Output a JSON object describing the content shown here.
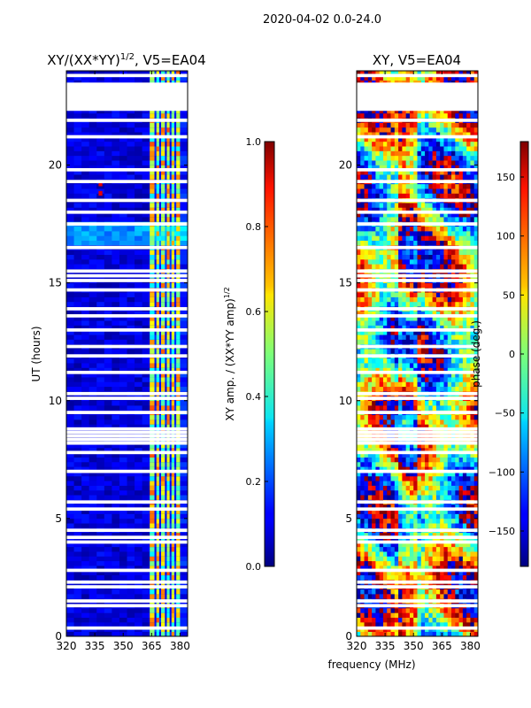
{
  "figure": {
    "suptitle": "2020-04-02 0.0-24.0",
    "xlabel": "frequency (MHz)"
  },
  "chart_data": [
    {
      "type": "heatmap",
      "title_main": "XY/(XX*YY)",
      "title_sup": "1/2",
      "title_rest": ", V5=EA04",
      "ylabel": "UT (hours)",
      "xlim": [
        320,
        384
      ],
      "ylim": [
        0,
        24
      ],
      "xticks": [
        320,
        335,
        350,
        365,
        380
      ],
      "yticks": [
        0,
        5,
        10,
        15,
        20
      ],
      "colorbar": {
        "label": "XY amp. / (XX*YY amp)",
        "label_sup": "1/2",
        "range": [
          0.0,
          1.0
        ],
        "ticks": [
          "0.0",
          "0.2",
          "0.4",
          "0.6",
          "0.8",
          "1.0"
        ],
        "tick_values": [
          0.0,
          0.2,
          0.4,
          0.6,
          0.8,
          1.0
        ],
        "colormap": "jet"
      },
      "band_freq_ranges_mhz": [
        [
          364,
          366.5
        ],
        [
          367.5,
          369
        ],
        [
          370,
          372
        ],
        [
          373,
          374.5
        ],
        [
          375.5,
          377
        ],
        [
          378,
          380
        ]
      ],
      "hot_spot": {
        "freq": 338,
        "ut_hours": [
          18.8,
          19.2
        ],
        "value": 0.9
      },
      "flagged_ut_hours": [
        0.35,
        1.3,
        1.5,
        2.1,
        2.3,
        2.8,
        4.0,
        4.2,
        4.5,
        5.4,
        5.7,
        7.0,
        7.8,
        8.2,
        8.35,
        8.5,
        8.65,
        8.8,
        9.5,
        10.1,
        10.3,
        11.2,
        11.9,
        12.3,
        13.0,
        13.6,
        13.9,
        14.7,
        15.1,
        15.3,
        15.5,
        16.5,
        17.5,
        18.0,
        18.5,
        19.3,
        19.8,
        21.2,
        21.9,
        22.4,
        22.6,
        22.8,
        23.0,
        23.2,
        23.4,
        23.8
      ]
    },
    {
      "type": "heatmap",
      "title": "XY, V5=EA04",
      "xlim": [
        320,
        384
      ],
      "ylim": [
        0,
        24
      ],
      "xticks": [
        320,
        335,
        350,
        365,
        380
      ],
      "yticks": [
        0,
        5,
        10,
        15,
        20
      ],
      "colorbar": {
        "label": "phase (deg.)",
        "range": [
          -180,
          180
        ],
        "ticks": [
          "150",
          "100",
          "50",
          "0",
          "−50",
          "−100",
          "−150"
        ],
        "tick_values": [
          150,
          100,
          50,
          0,
          -50,
          -100,
          -150
        ],
        "colormap": "jet"
      },
      "flagged_ut_hours": [
        0.35,
        1.3,
        1.5,
        2.1,
        2.3,
        2.8,
        4.0,
        4.2,
        4.5,
        5.4,
        5.7,
        7.0,
        7.8,
        8.2,
        8.35,
        8.5,
        8.65,
        8.8,
        9.5,
        10.1,
        10.3,
        11.2,
        11.9,
        12.3,
        13.0,
        13.6,
        13.9,
        14.7,
        15.1,
        15.3,
        15.5,
        16.5,
        17.5,
        18.0,
        18.5,
        19.3,
        19.8,
        21.2,
        21.9,
        22.4,
        22.6,
        22.8,
        23.0,
        23.2,
        23.4,
        23.8
      ]
    }
  ]
}
